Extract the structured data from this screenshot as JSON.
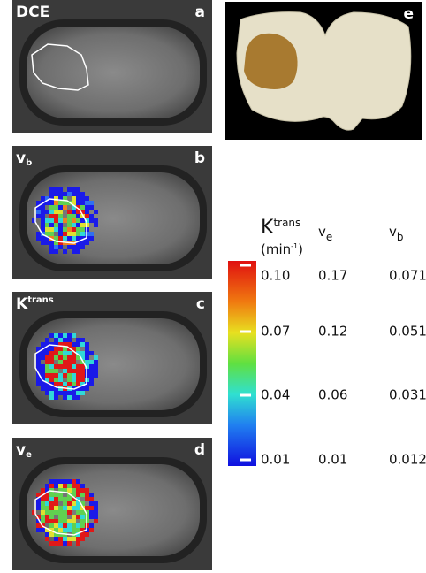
{
  "panels": [
    {
      "label": "DCE",
      "letter": "a"
    },
    {
      "label": "v",
      "label_sub": "b",
      "letter": "b"
    },
    {
      "label": "K",
      "label_sup": "trans",
      "letter": "c"
    },
    {
      "label": "v",
      "label_sub": "e",
      "letter": "d"
    }
  ],
  "histology": {
    "letter": "e"
  },
  "colorbar": {
    "headers": [
      {
        "text": "K",
        "sup": "trans",
        "unit": "(min",
        "unit_sup": "-1",
        "unit_end": ")"
      },
      {
        "text": "v",
        "sub": "e"
      },
      {
        "text": "v",
        "sub": "b"
      }
    ],
    "rows": [
      [
        "0.10",
        "0.17",
        "0.071"
      ],
      [
        "0.07",
        "0.12",
        "0.051"
      ],
      [
        "0.04",
        "0.06",
        "0.031"
      ],
      [
        "0.01",
        "0.01",
        "0.012"
      ]
    ]
  }
}
